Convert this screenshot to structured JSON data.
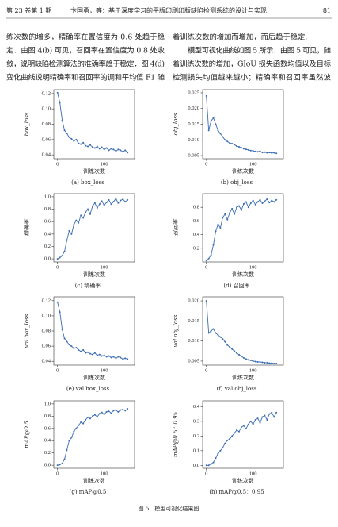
{
  "header": {
    "issue": "第 23 卷第 1 期",
    "title": "卞国勇，等：基于深度学习的平版印刷印版缺陷检测系统的设计与实现",
    "page": "81"
  },
  "text": {
    "left": [
      "练次数的增多，精确率在置信度为 0.6 处趋于稳",
      "定．由图 4(b) 可见，召回率在置信度为 0.8 处收",
      "敛，说明缺陷检测算法的准确率趋于稳定．图 4(d)",
      "变化曲线说明精确率和召回率的调和平均值 F1 随"
    ],
    "right": [
      "着训练次数的增加而增加，而后趋于稳定.",
      "模型可视化曲线如图 5 所示．由图 5 可见，随",
      "着训练次数的增加，GIoU 损失函数均值以及目标",
      "检测损失均值越来越小；精确率和召回率虽然波"
    ]
  },
  "chart_data": [
    {
      "type": "line",
      "caption": "(a) box_loss",
      "ylabel": "box_loss",
      "xlabel": "训练次数",
      "x": [
        0,
        5,
        10,
        15,
        20,
        25,
        30,
        35,
        40,
        45,
        50,
        55,
        60,
        65,
        70,
        75,
        80,
        85,
        90,
        95,
        100,
        105,
        110,
        115,
        120,
        125,
        130,
        135,
        140,
        145,
        150
      ],
      "series": [
        {
          "color": "#3b6db3",
          "values": [
            0.121,
            0.108,
            0.085,
            0.072,
            0.068,
            0.063,
            0.061,
            0.058,
            0.06,
            0.055,
            0.054,
            0.056,
            0.052,
            0.051,
            0.053,
            0.05,
            0.049,
            0.051,
            0.048,
            0.05,
            0.047,
            0.049,
            0.046,
            0.048,
            0.047,
            0.045,
            0.047,
            0.046,
            0.044,
            0.046,
            0.043
          ]
        }
      ],
      "xlim": [
        -8,
        165
      ],
      "xticks": [
        0,
        100
      ],
      "ylim": [
        0.035,
        0.125
      ],
      "yticks": [
        0.04,
        0.06,
        0.08,
        {
          "value": 0.1,
          "label": "0.10"
        },
        0.12
      ]
    },
    {
      "type": "line",
      "caption": "(b) obj_loss",
      "ylabel": "obj_loss",
      "xlabel": "训练次数",
      "x": [
        0,
        5,
        10,
        15,
        20,
        25,
        30,
        35,
        40,
        45,
        50,
        55,
        60,
        65,
        70,
        75,
        80,
        85,
        90,
        95,
        100,
        105,
        110,
        115,
        120,
        125,
        130,
        135,
        140,
        145,
        150
      ],
      "series": [
        {
          "color": "#3b6db3",
          "values": [
            0.024,
            0.013,
            0.016,
            0.017,
            0.015,
            0.013,
            0.012,
            0.011,
            0.01,
            0.0095,
            0.009,
            0.0088,
            0.0085,
            0.008,
            0.0078,
            0.0075,
            0.0072,
            0.007,
            0.0068,
            0.0066,
            0.0065,
            0.0063,
            0.0062,
            0.0064,
            0.006,
            0.0061,
            0.0059,
            0.006,
            0.0058,
            0.0059,
            0.0057
          ]
        }
      ],
      "xlim": [
        -8,
        165
      ],
      "xticks": [
        0,
        100
      ],
      "ylim": [
        0.004,
        0.026
      ],
      "yticks": [
        0.005,
        {
          "value": 0.01,
          "label": "0.010"
        },
        0.015,
        {
          "value": 0.02,
          "label": "0.020"
        },
        0.025
      ]
    },
    {
      "type": "line",
      "caption": "(c) 精确率",
      "ylabel": "精确率",
      "xlabel": "训练次数",
      "x": [
        0,
        5,
        10,
        15,
        20,
        25,
        30,
        35,
        40,
        45,
        50,
        55,
        60,
        65,
        70,
        75,
        80,
        85,
        90,
        95,
        100,
        105,
        110,
        115,
        120,
        125,
        130,
        135,
        140,
        145,
        150
      ],
      "series": [
        {
          "color": "#3b6db3",
          "values": [
            0.0,
            0.02,
            0.05,
            0.12,
            0.3,
            0.45,
            0.4,
            0.55,
            0.62,
            0.58,
            0.7,
            0.66,
            0.75,
            0.8,
            0.72,
            0.85,
            0.9,
            0.82,
            0.88,
            0.93,
            0.86,
            0.91,
            0.95,
            0.88,
            0.92,
            0.97,
            0.9,
            0.94,
            0.96,
            0.92,
            0.95
          ]
        }
      ],
      "xlim": [
        -8,
        165
      ],
      "xticks": [
        0,
        100
      ],
      "ylim": [
        -0.05,
        1.05
      ],
      "yticks": [
        {
          "value": 0,
          "label": "0.0"
        },
        0.2,
        0.4,
        0.6,
        0.8,
        {
          "value": 1,
          "label": "1.0"
        }
      ]
    },
    {
      "type": "line",
      "caption": "(d) 召回率",
      "ylabel": "召回率",
      "xlabel": "训练次数",
      "x": [
        0,
        5,
        10,
        15,
        20,
        25,
        30,
        35,
        40,
        45,
        50,
        55,
        60,
        65,
        70,
        75,
        80,
        85,
        90,
        95,
        100,
        105,
        110,
        115,
        120,
        125,
        130,
        135,
        140,
        145,
        150
      ],
      "series": [
        {
          "color": "#3b6db3",
          "values": [
            0.02,
            0.05,
            0.1,
            0.25,
            0.45,
            0.55,
            0.5,
            0.65,
            0.7,
            0.62,
            0.72,
            0.78,
            0.7,
            0.8,
            0.82,
            0.76,
            0.85,
            0.88,
            0.8,
            0.86,
            0.9,
            0.84,
            0.88,
            0.91,
            0.86,
            0.89,
            0.92,
            0.87,
            0.9,
            0.88,
            0.91
          ]
        }
      ],
      "xlim": [
        -8,
        165
      ],
      "xticks": [
        0,
        100
      ],
      "ylim": [
        0,
        1.0
      ],
      "yticks": [
        0.2,
        0.4,
        0.6,
        0.8
      ]
    },
    {
      "type": "line",
      "caption": "(e) val box_loss",
      "ylabel": "val box_loss",
      "xlabel": "训练次数",
      "x": [
        0,
        5,
        10,
        15,
        20,
        25,
        30,
        35,
        40,
        45,
        50,
        55,
        60,
        65,
        70,
        75,
        80,
        85,
        90,
        95,
        100,
        105,
        110,
        115,
        120,
        125,
        130,
        135,
        140,
        145,
        150
      ],
      "series": [
        {
          "color": "#3b6db3",
          "values": [
            0.118,
            0.105,
            0.082,
            0.07,
            0.066,
            0.062,
            0.06,
            0.057,
            0.058,
            0.055,
            0.053,
            0.055,
            0.051,
            0.052,
            0.05,
            0.049,
            0.051,
            0.048,
            0.049,
            0.047,
            0.048,
            0.046,
            0.047,
            0.045,
            0.046,
            0.044,
            0.046,
            0.045,
            0.043,
            0.044,
            0.043
          ]
        }
      ],
      "xlim": [
        -8,
        165
      ],
      "xticks": [
        0,
        100
      ],
      "ylim": [
        0.035,
        0.125
      ],
      "yticks": [
        0.04,
        0.06,
        0.08,
        {
          "value": 0.1,
          "label": "0.10"
        },
        0.12
      ]
    },
    {
      "type": "line",
      "caption": "(f) val obj_loss",
      "ylabel": "val obj_loss",
      "xlabel": "训练次数",
      "x": [
        0,
        5,
        10,
        15,
        20,
        25,
        30,
        35,
        40,
        45,
        50,
        55,
        60,
        65,
        70,
        75,
        80,
        85,
        90,
        95,
        100,
        105,
        110,
        115,
        120,
        125,
        130,
        135,
        140,
        145,
        150
      ],
      "series": [
        {
          "color": "#3b6db3",
          "values": [
            0.02,
            0.012,
            0.0125,
            0.013,
            0.012,
            0.0115,
            0.011,
            0.0105,
            0.0098,
            0.009,
            0.0085,
            0.008,
            0.0075,
            0.007,
            0.0066,
            0.0062,
            0.0058,
            0.0055,
            0.0053,
            0.0052,
            0.005,
            0.0049,
            0.0048,
            0.0048,
            0.0047,
            0.0046,
            0.0046,
            0.0045,
            0.0045,
            0.0044,
            0.0044
          ]
        }
      ],
      "xlim": [
        -8,
        165
      ],
      "xticks": [
        0,
        100
      ],
      "ylim": [
        0.004,
        0.021
      ],
      "yticks": [
        0.005,
        {
          "value": 0.01,
          "label": "0.010"
        },
        0.015,
        {
          "value": 0.02,
          "label": "0.020"
        }
      ]
    },
    {
      "type": "line",
      "caption": "(g) mAP@0.5",
      "ylabel": "mAP@0.5",
      "xlabel": "训练次数",
      "x": [
        0,
        5,
        10,
        15,
        20,
        25,
        30,
        35,
        40,
        45,
        50,
        55,
        60,
        65,
        70,
        75,
        80,
        85,
        90,
        95,
        100,
        105,
        110,
        115,
        120,
        125,
        130,
        135,
        140,
        145,
        150
      ],
      "series": [
        {
          "color": "#3b6db3",
          "values": [
            0.0,
            0.01,
            0.03,
            0.1,
            0.25,
            0.4,
            0.45,
            0.55,
            0.6,
            0.65,
            0.7,
            0.68,
            0.74,
            0.78,
            0.76,
            0.8,
            0.82,
            0.79,
            0.84,
            0.86,
            0.83,
            0.87,
            0.88,
            0.85,
            0.89,
            0.9,
            0.87,
            0.9,
            0.91,
            0.89,
            0.92
          ]
        }
      ],
      "xlim": [
        -8,
        165
      ],
      "xticks": [
        0,
        100
      ],
      "ylim": [
        -0.05,
        1.05
      ],
      "yticks": [
        {
          "value": 0,
          "label": "0.0"
        },
        0.2,
        0.4,
        0.6,
        0.8,
        {
          "value": 1,
          "label": "1.0"
        }
      ]
    },
    {
      "type": "line",
      "caption": "(h) mAP@0.5：0.95",
      "ylabel": "mAP@0.5：0.95",
      "xlabel": "训练次数",
      "x": [
        0,
        5,
        10,
        15,
        20,
        25,
        30,
        35,
        40,
        45,
        50,
        55,
        60,
        65,
        70,
        75,
        80,
        85,
        90,
        95,
        100,
        105,
        110,
        115,
        120,
        125,
        130,
        135,
        140,
        145,
        150
      ],
      "series": [
        {
          "color": "#3b6db3",
          "values": [
            0.0,
            0.0,
            0.01,
            0.02,
            0.05,
            0.08,
            0.1,
            0.12,
            0.15,
            0.17,
            0.18,
            0.2,
            0.22,
            0.24,
            0.23,
            0.26,
            0.27,
            0.25,
            0.28,
            0.3,
            0.28,
            0.31,
            0.32,
            0.29,
            0.33,
            0.34,
            0.31,
            0.35,
            0.36,
            0.33,
            0.36
          ]
        }
      ],
      "xlim": [
        -8,
        165
      ],
      "xticks": [
        0,
        100
      ],
      "ylim": [
        -0.02,
        0.44
      ],
      "yticks": [
        {
          "value": 0,
          "label": "0.0"
        },
        0.1,
        0.2,
        0.3,
        0.4
      ]
    }
  ],
  "figure_caption": "图 5　模型可视化结果图"
}
